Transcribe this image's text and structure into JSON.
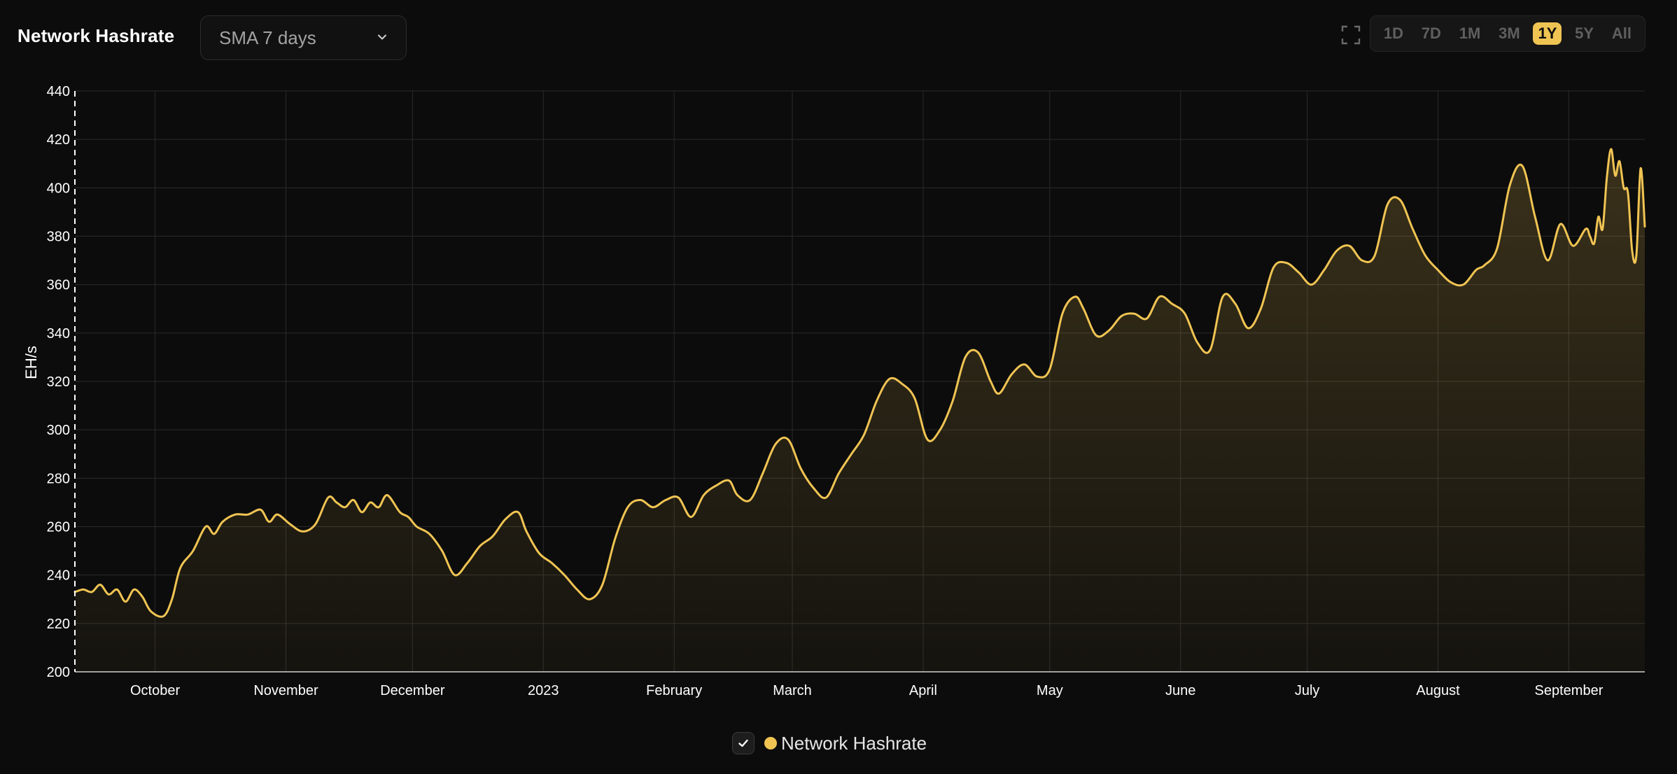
{
  "header": {
    "title": "Network Hashrate",
    "smoothing_select": {
      "value": "SMA 7 days"
    },
    "fullscreen_icon": "expand-icon",
    "ranges": [
      {
        "label": "1D",
        "active": false
      },
      {
        "label": "7D",
        "active": false
      },
      {
        "label": "1M",
        "active": false
      },
      {
        "label": "3M",
        "active": false
      },
      {
        "label": "1Y",
        "active": true
      },
      {
        "label": "5Y",
        "active": false
      },
      {
        "label": "All",
        "active": false
      }
    ]
  },
  "legend": {
    "label": "Network Hashrate",
    "checked": true
  },
  "colors": {
    "background": "#0c0c0c",
    "accent": "#f0c453",
    "grid": "#2a2a2a",
    "axis_text": "#ffffff"
  },
  "chart_data": {
    "type": "area",
    "ylabel": "EH/s",
    "ylim": [
      200,
      440
    ],
    "yticks": [
      200,
      220,
      240,
      260,
      280,
      300,
      320,
      340,
      360,
      380,
      400,
      420,
      440
    ],
    "xlim": [
      "2022-09-12",
      "2023-09-19"
    ],
    "xticks": [
      {
        "date": "2022-10-01",
        "label": "October"
      },
      {
        "date": "2022-11-01",
        "label": "November"
      },
      {
        "date": "2022-12-01",
        "label": "December"
      },
      {
        "date": "2023-01-01",
        "label": "2023"
      },
      {
        "date": "2023-02-01",
        "label": "February"
      },
      {
        "date": "2023-03-01",
        "label": "March"
      },
      {
        "date": "2023-04-01",
        "label": "April"
      },
      {
        "date": "2023-05-01",
        "label": "May"
      },
      {
        "date": "2023-06-01",
        "label": "June"
      },
      {
        "date": "2023-07-01",
        "label": "July"
      },
      {
        "date": "2023-08-01",
        "label": "August"
      },
      {
        "date": "2023-09-01",
        "label": "September"
      }
    ],
    "grid": true,
    "legend_position": "bottom-center",
    "series": [
      {
        "name": "Network Hashrate",
        "color": "#f0c453",
        "points": [
          [
            "2022-09-12",
            233
          ],
          [
            "2022-09-14",
            234
          ],
          [
            "2022-09-16",
            233
          ],
          [
            "2022-09-18",
            236
          ],
          [
            "2022-09-20",
            232
          ],
          [
            "2022-09-22",
            234
          ],
          [
            "2022-09-24",
            229
          ],
          [
            "2022-09-26",
            234
          ],
          [
            "2022-09-28",
            231
          ],
          [
            "2022-09-30",
            225
          ],
          [
            "2022-10-03",
            223
          ],
          [
            "2022-10-05",
            230
          ],
          [
            "2022-10-07",
            243
          ],
          [
            "2022-10-10",
            250
          ],
          [
            "2022-10-13",
            260
          ],
          [
            "2022-10-15",
            257
          ],
          [
            "2022-10-17",
            262
          ],
          [
            "2022-10-20",
            265
          ],
          [
            "2022-10-23",
            265
          ],
          [
            "2022-10-26",
            267
          ],
          [
            "2022-10-28",
            262
          ],
          [
            "2022-10-30",
            265
          ],
          [
            "2022-11-02",
            261
          ],
          [
            "2022-11-05",
            258
          ],
          [
            "2022-11-08",
            261
          ],
          [
            "2022-11-11",
            272
          ],
          [
            "2022-11-13",
            270
          ],
          [
            "2022-11-15",
            268
          ],
          [
            "2022-11-17",
            271
          ],
          [
            "2022-11-19",
            266
          ],
          [
            "2022-11-21",
            270
          ],
          [
            "2022-11-23",
            268
          ],
          [
            "2022-11-25",
            273
          ],
          [
            "2022-11-28",
            266
          ],
          [
            "2022-11-30",
            264
          ],
          [
            "2022-12-02",
            260
          ],
          [
            "2022-12-05",
            257
          ],
          [
            "2022-12-08",
            250
          ],
          [
            "2022-12-11",
            240
          ],
          [
            "2022-12-14",
            245
          ],
          [
            "2022-12-17",
            252
          ],
          [
            "2022-12-20",
            256
          ],
          [
            "2022-12-23",
            263
          ],
          [
            "2022-12-26",
            266
          ],
          [
            "2022-12-28",
            258
          ],
          [
            "2022-12-31",
            249
          ],
          [
            "2023-01-03",
            245
          ],
          [
            "2023-01-06",
            240
          ],
          [
            "2023-01-09",
            234
          ],
          [
            "2023-01-12",
            230
          ],
          [
            "2023-01-15",
            236
          ],
          [
            "2023-01-18",
            255
          ],
          [
            "2023-01-21",
            268
          ],
          [
            "2023-01-24",
            271
          ],
          [
            "2023-01-27",
            268
          ],
          [
            "2023-01-30",
            271
          ],
          [
            "2023-02-02",
            272
          ],
          [
            "2023-02-05",
            264
          ],
          [
            "2023-02-08",
            273
          ],
          [
            "2023-02-11",
            277
          ],
          [
            "2023-02-14",
            279
          ],
          [
            "2023-02-16",
            273
          ],
          [
            "2023-02-19",
            271
          ],
          [
            "2023-02-22",
            282
          ],
          [
            "2023-02-25",
            294
          ],
          [
            "2023-02-28",
            296
          ],
          [
            "2023-03-03",
            284
          ],
          [
            "2023-03-06",
            276
          ],
          [
            "2023-03-09",
            272
          ],
          [
            "2023-03-12",
            282
          ],
          [
            "2023-03-15",
            290
          ],
          [
            "2023-03-18",
            298
          ],
          [
            "2023-03-21",
            312
          ],
          [
            "2023-03-24",
            321
          ],
          [
            "2023-03-27",
            319
          ],
          [
            "2023-03-30",
            313
          ],
          [
            "2023-04-02",
            296
          ],
          [
            "2023-04-05",
            300
          ],
          [
            "2023-04-08",
            312
          ],
          [
            "2023-04-11",
            330
          ],
          [
            "2023-04-14",
            332
          ],
          [
            "2023-04-17",
            320
          ],
          [
            "2023-04-19",
            315
          ],
          [
            "2023-04-22",
            323
          ],
          [
            "2023-04-25",
            327
          ],
          [
            "2023-04-28",
            322
          ],
          [
            "2023-05-01",
            325
          ],
          [
            "2023-05-04",
            348
          ],
          [
            "2023-05-07",
            355
          ],
          [
            "2023-05-09",
            350
          ],
          [
            "2023-05-12",
            339
          ],
          [
            "2023-05-15",
            341
          ],
          [
            "2023-05-18",
            347
          ],
          [
            "2023-05-21",
            348
          ],
          [
            "2023-05-24",
            346
          ],
          [
            "2023-05-27",
            355
          ],
          [
            "2023-05-30",
            352
          ],
          [
            "2023-06-02",
            348
          ],
          [
            "2023-06-05",
            336
          ],
          [
            "2023-06-08",
            333
          ],
          [
            "2023-06-11",
            355
          ],
          [
            "2023-06-14",
            352
          ],
          [
            "2023-06-17",
            342
          ],
          [
            "2023-06-20",
            350
          ],
          [
            "2023-06-23",
            367
          ],
          [
            "2023-06-26",
            369
          ],
          [
            "2023-06-29",
            365
          ],
          [
            "2023-07-02",
            360
          ],
          [
            "2023-07-05",
            366
          ],
          [
            "2023-07-08",
            374
          ],
          [
            "2023-07-11",
            376
          ],
          [
            "2023-07-14",
            370
          ],
          [
            "2023-07-17",
            372
          ],
          [
            "2023-07-20",
            393
          ],
          [
            "2023-07-23",
            395
          ],
          [
            "2023-07-26",
            383
          ],
          [
            "2023-07-29",
            372
          ],
          [
            "2023-08-01",
            366
          ],
          [
            "2023-08-04",
            361
          ],
          [
            "2023-08-07",
            360
          ],
          [
            "2023-08-10",
            366
          ],
          [
            "2023-08-12",
            368
          ],
          [
            "2023-08-15",
            375
          ],
          [
            "2023-08-18",
            401
          ],
          [
            "2023-08-21",
            409
          ],
          [
            "2023-08-24",
            388
          ],
          [
            "2023-08-27",
            370
          ],
          [
            "2023-08-30",
            385
          ],
          [
            "2023-09-02",
            376
          ],
          [
            "2023-09-05",
            383
          ],
          [
            "2023-09-06",
            380
          ],
          [
            "2023-09-07",
            377
          ],
          [
            "2023-09-08",
            388
          ],
          [
            "2023-09-09",
            383
          ],
          [
            "2023-09-10",
            404
          ],
          [
            "2023-09-11",
            416
          ],
          [
            "2023-09-12",
            405
          ],
          [
            "2023-09-13",
            411
          ],
          [
            "2023-09-14",
            400
          ],
          [
            "2023-09-15",
            398
          ],
          [
            "2023-09-16",
            374
          ],
          [
            "2023-09-17",
            372
          ],
          [
            "2023-09-18",
            408
          ],
          [
            "2023-09-19",
            384
          ]
        ]
      }
    ]
  }
}
